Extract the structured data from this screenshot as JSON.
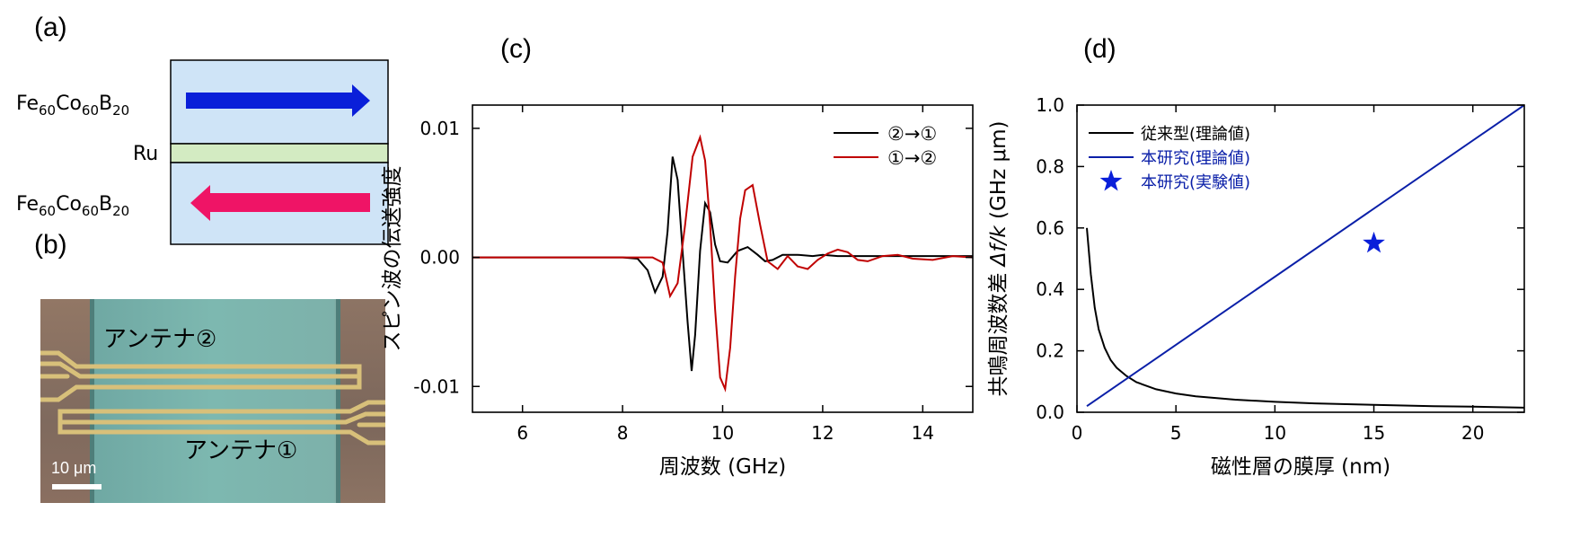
{
  "panels": {
    "a": "(a)",
    "b": "(b)",
    "c": "(c)",
    "d": "(d)"
  },
  "layers": {
    "top": {
      "base": "Fe",
      "s1": "60",
      "m": "Co",
      "s2": "60",
      "e": "B",
      "s3": "20"
    },
    "spacer": "Ru",
    "bottom": {
      "base": "Fe",
      "s1": "60",
      "m": "Co",
      "s2": "60",
      "e": "B",
      "s3": "20"
    },
    "colors": {
      "fill": "#cfe4f7",
      "spacer": "#d3ebc2",
      "arrow_top": "#0a1fd9",
      "arrow_bottom": "#ef1466"
    }
  },
  "photo": {
    "antenna2": "アンテナ②",
    "antenna1": "アンテナ①",
    "scale": "10 μm"
  },
  "chart_data": [
    {
      "type": "line",
      "xlabel": "周波数 (GHz)",
      "ylabel": "スピン波の伝送強度",
      "xlim": [
        5,
        15
      ],
      "ylim": [
        -0.012,
        0.0118
      ],
      "xticks": [
        6,
        8,
        10,
        12,
        14
      ],
      "yticks": [
        0.01,
        0.0,
        -0.01
      ],
      "ytick_labels": [
        "0.01",
        "0.00",
        "-0.01"
      ],
      "legend": "top-right",
      "series": [
        {
          "name": "②→①",
          "color": "#000000",
          "x": [
            5,
            6,
            7,
            8,
            8.3,
            8.5,
            8.65,
            8.8,
            8.9,
            9.0,
            9.1,
            9.2,
            9.3,
            9.38,
            9.45,
            9.55,
            9.65,
            9.75,
            9.85,
            9.95,
            10.1,
            10.3,
            10.5,
            10.7,
            10.85,
            11.0,
            11.2,
            11.5,
            11.8,
            12.0,
            12.3,
            12.6,
            13.0,
            13.5,
            14.0,
            14.5,
            15
          ],
          "y": [
            0,
            0,
            0,
            0,
            -0.0001,
            -0.001,
            -0.0027,
            -0.0015,
            0.002,
            0.0078,
            0.006,
            0.0005,
            -0.005,
            -0.0088,
            -0.006,
            0.0005,
            0.0042,
            0.0035,
            0.001,
            -0.0003,
            -0.0004,
            0.0005,
            0.0008,
            0.0002,
            -0.0003,
            -0.0002,
            0.0002,
            0.0002,
            0.0001,
            0.0002,
            0.0001,
            0.0001,
            0.0001,
            0.0001,
            0.0001,
            0.0001,
            0.0001
          ]
        },
        {
          "name": "①→②",
          "color": "#c00000",
          "x": [
            5,
            6,
            7,
            8,
            8.4,
            8.6,
            8.8,
            8.95,
            9.1,
            9.25,
            9.4,
            9.55,
            9.65,
            9.75,
            9.85,
            9.95,
            10.05,
            10.15,
            10.25,
            10.35,
            10.45,
            10.6,
            10.75,
            10.9,
            11.1,
            11.3,
            11.5,
            11.7,
            11.9,
            12.1,
            12.3,
            12.5,
            12.7,
            12.9,
            13.2,
            13.5,
            13.8,
            14.2,
            14.6,
            15
          ],
          "y": [
            0,
            0,
            0,
            0,
            0,
            0,
            -0.0004,
            -0.003,
            -0.002,
            0.0025,
            0.0078,
            0.0093,
            0.0075,
            0.0025,
            -0.004,
            -0.0093,
            -0.0102,
            -0.007,
            -0.0015,
            0.003,
            0.0052,
            0.0056,
            0.0025,
            -0.0003,
            -0.0009,
            0.0001,
            -0.0007,
            -0.0009,
            -0.0002,
            0.0003,
            0.0006,
            0.0004,
            -0.0002,
            -0.0003,
            0.0001,
            0.0002,
            -0.0001,
            -0.0002,
            0.0001,
            0
          ]
        }
      ]
    },
    {
      "type": "line",
      "xlabel": "磁性層の膜厚 (nm)",
      "ylabel_main": "共鳴周波数差",
      "ylabel_sym": "Δf/k",
      "ylabel_unit": "(GHz μm)",
      "xlim": [
        0,
        22.6
      ],
      "ylim": [
        0,
        1.0
      ],
      "xticks": [
        0,
        5,
        10,
        15,
        20
      ],
      "yticks": [
        0.0,
        0.2,
        0.4,
        0.6,
        0.8,
        1.0
      ],
      "ytick_labels": [
        "0.0",
        "0.2",
        "0.4",
        "0.6",
        "0.8",
        "1.0"
      ],
      "legend": "top-left",
      "series": [
        {
          "name": "従来型(理論値)",
          "color": "#000000",
          "marker": "none",
          "x": [
            0.5,
            0.7,
            0.9,
            1.1,
            1.4,
            1.7,
            2,
            2.5,
            3,
            4,
            5,
            6,
            8,
            10,
            12,
            15,
            18,
            20,
            22.6
          ],
          "y": [
            0.6,
            0.45,
            0.34,
            0.27,
            0.21,
            0.17,
            0.145,
            0.118,
            0.098,
            0.075,
            0.061,
            0.052,
            0.041,
            0.034,
            0.029,
            0.024,
            0.02,
            0.018,
            0.015
          ]
        },
        {
          "name": "本研究(理論値)",
          "color": "#0a1fa8",
          "marker": "none",
          "x": [
            0.5,
            22.6
          ],
          "y": [
            0.02,
            1.0
          ]
        },
        {
          "name": "本研究(実験値)",
          "color": "#0a1fd9",
          "marker": "star",
          "x": [
            15
          ],
          "y": [
            0.55
          ]
        }
      ]
    }
  ]
}
